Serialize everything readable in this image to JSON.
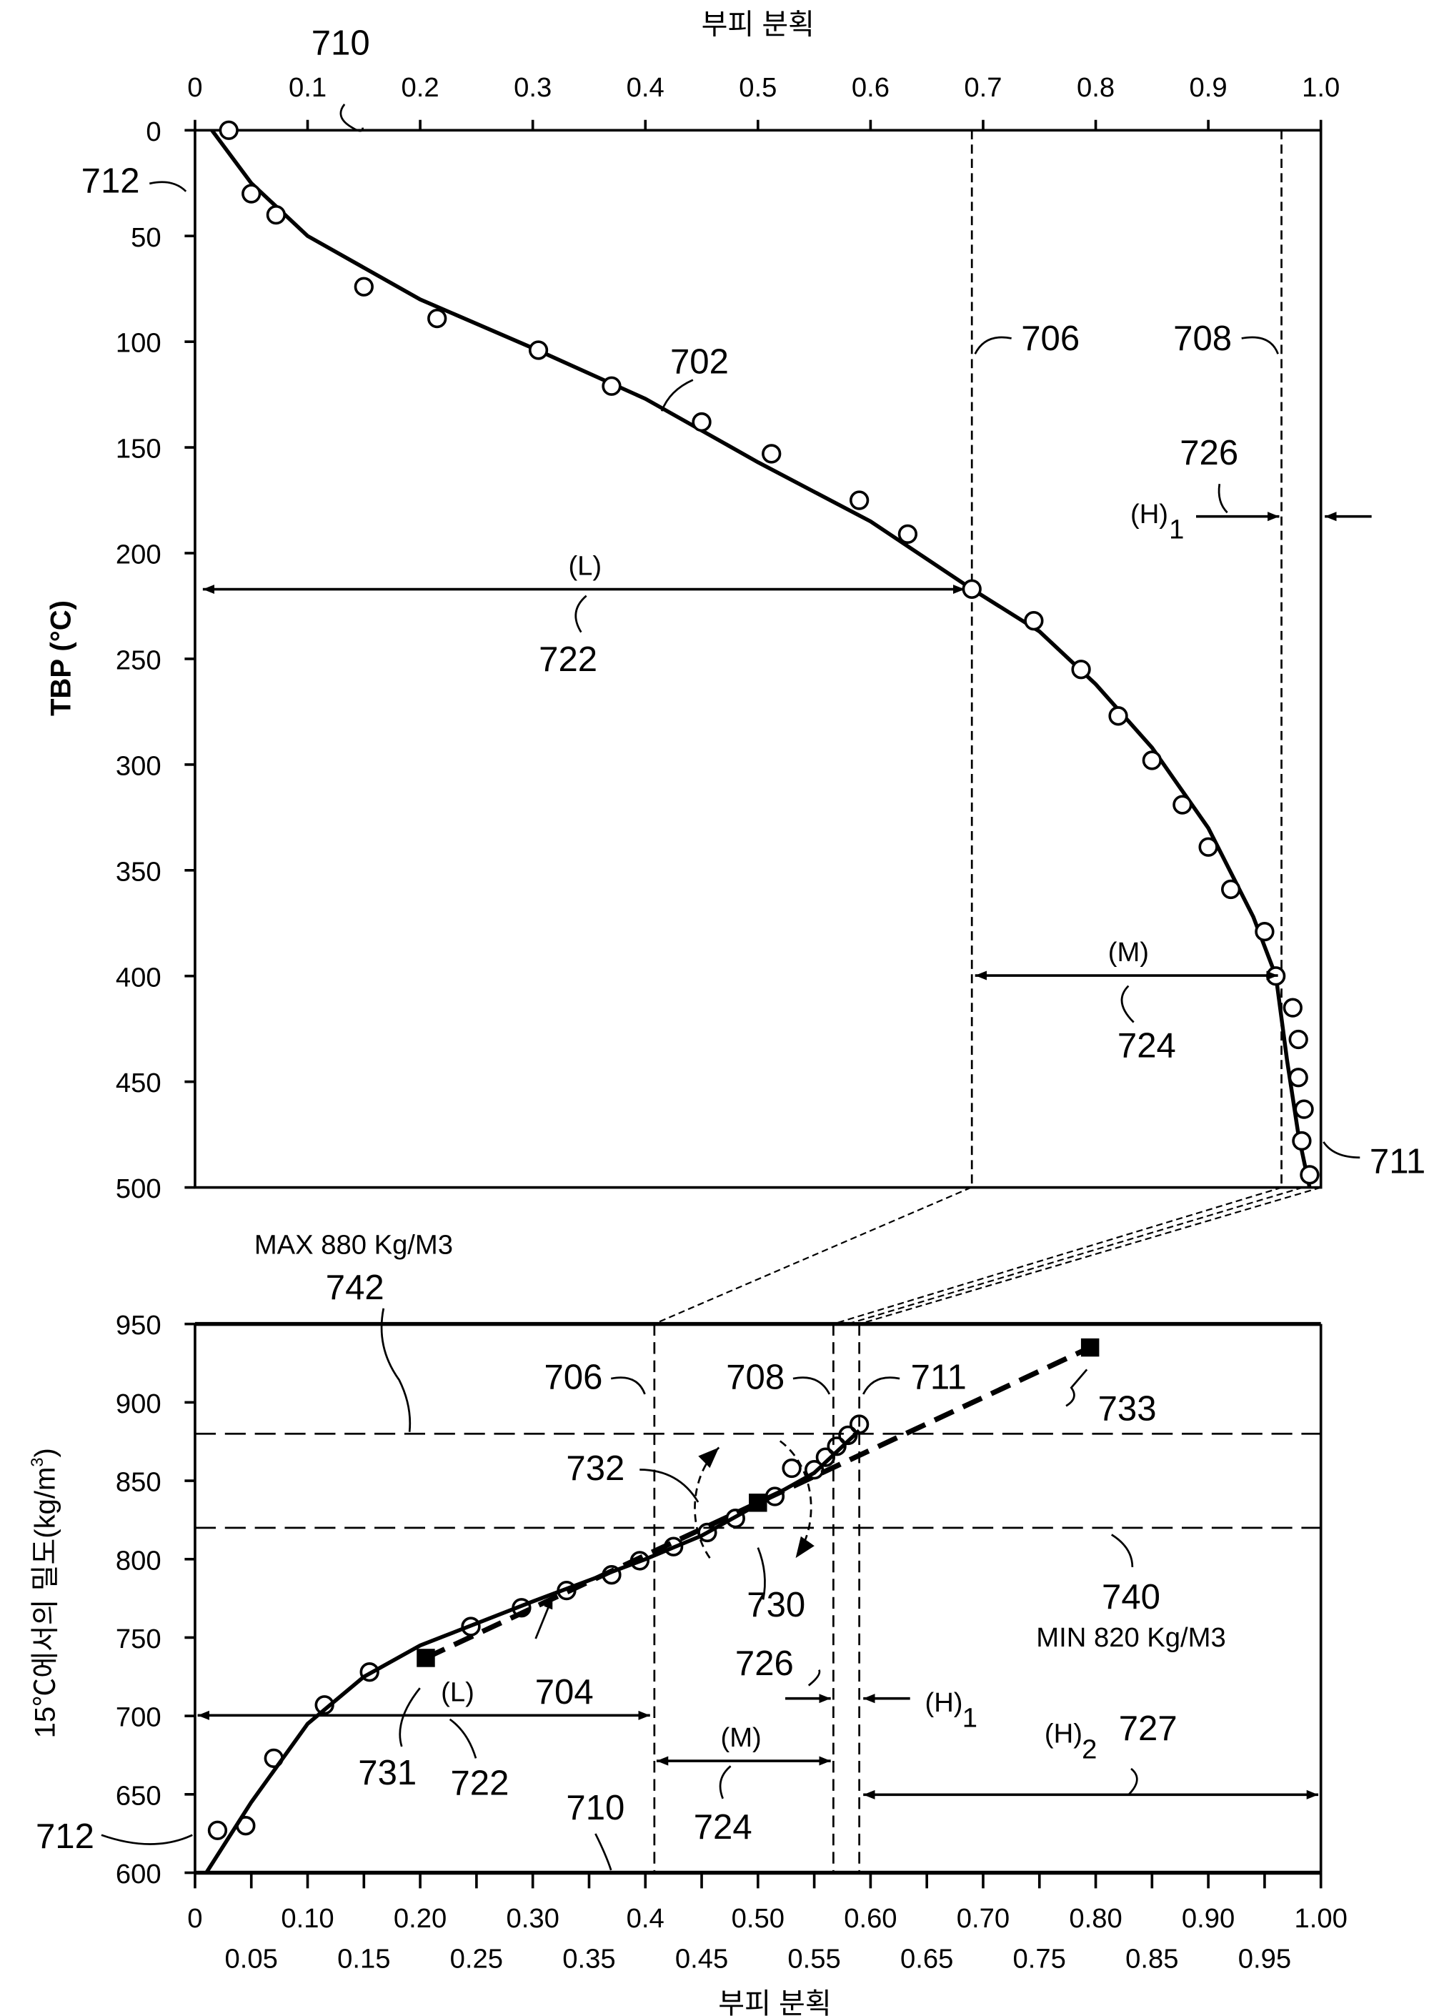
{
  "chart_data": [
    {
      "type": "scatter",
      "xlabel": "부피 분획",
      "ylabel": "TBP (°C)",
      "xlim": [
        0,
        1.0
      ],
      "ylim": [
        500,
        0
      ],
      "x_axis_position": "top",
      "x_ticks": [
        "0",
        "0.1",
        "0.2",
        "0.3",
        "0.4",
        "0.5",
        "0.6",
        "0.7",
        "0.8",
        "0.9",
        "1.0"
      ],
      "y_ticks": [
        "0",
        "50",
        "100",
        "150",
        "200",
        "250",
        "300",
        "350",
        "400",
        "450",
        "500"
      ],
      "grid": false,
      "points": [
        [
          0.03,
          0
        ],
        [
          0.05,
          30
        ],
        [
          0.072,
          40
        ],
        [
          0.15,
          74
        ],
        [
          0.215,
          89
        ],
        [
          0.305,
          104
        ],
        [
          0.37,
          121
        ],
        [
          0.45,
          138
        ],
        [
          0.512,
          153
        ],
        [
          0.59,
          175
        ],
        [
          0.633,
          191
        ],
        [
          0.69,
          217
        ],
        [
          0.745,
          232
        ],
        [
          0.787,
          255
        ],
        [
          0.82,
          277
        ],
        [
          0.85,
          298
        ],
        [
          0.877,
          319
        ],
        [
          0.9,
          339
        ],
        [
          0.92,
          359
        ],
        [
          0.95,
          379
        ],
        [
          0.96,
          400
        ],
        [
          0.975,
          415
        ],
        [
          0.98,
          430
        ],
        [
          0.98,
          448
        ],
        [
          0.985,
          463
        ],
        [
          0.983,
          478
        ],
        [
          0.99,
          494
        ]
      ],
      "curve": [
        [
          0.015,
          0
        ],
        [
          0.05,
          25
        ],
        [
          0.1,
          50
        ],
        [
          0.2,
          80
        ],
        [
          0.3,
          103
        ],
        [
          0.4,
          127
        ],
        [
          0.5,
          157
        ],
        [
          0.6,
          185
        ],
        [
          0.69,
          217
        ],
        [
          0.75,
          237
        ],
        [
          0.8,
          262
        ],
        [
          0.85,
          292
        ],
        [
          0.9,
          330
        ],
        [
          0.94,
          372
        ],
        [
          0.96,
          400
        ],
        [
          0.97,
          440
        ],
        [
          0.98,
          475
        ],
        [
          0.99,
          500
        ]
      ],
      "cut_lines": [
        0.69,
        0.965
      ],
      "annotations": {
        "l710": "710",
        "l712": "712",
        "l702": "702",
        "l706": "706",
        "l708": "708",
        "l726": "726",
        "h1": "(H)",
        "h1_sub": "1",
        "L": "(L)",
        "l722": "722",
        "M": "(M)",
        "l724": "724",
        "l711": "711"
      }
    },
    {
      "type": "scatter",
      "xlabel": "부피 분획",
      "ylabel": "15℃에서의 밀도(kg/m",
      "ylabel_sup": "3",
      "ylabel_end": ")",
      "xlim": [
        0,
        1.0
      ],
      "ylim": [
        600,
        950
      ],
      "x_ticks_row1": [
        "0",
        "0.10",
        "0.20",
        "0.30",
        "0.4",
        "0.50",
        "0.60",
        "0.70",
        "0.80",
        "0.90",
        "1.00"
      ],
      "x_ticks_row2": [
        "0.05",
        "0.15",
        "0.25",
        "0.35",
        "0.45",
        "0.55",
        "0.65",
        "0.75",
        "0.85",
        "0.95"
      ],
      "y_ticks": [
        "950",
        "900",
        "850",
        "800",
        "750",
        "700",
        "650",
        "600"
      ],
      "grid": false,
      "points": [
        [
          0.02,
          627
        ],
        [
          0.045,
          630
        ],
        [
          0.07,
          673
        ],
        [
          0.115,
          707
        ],
        [
          0.155,
          728
        ],
        [
          0.245,
          757
        ],
        [
          0.29,
          769
        ],
        [
          0.33,
          780
        ],
        [
          0.37,
          790
        ],
        [
          0.395,
          799
        ],
        [
          0.425,
          808
        ],
        [
          0.455,
          817
        ],
        [
          0.48,
          826
        ],
        [
          0.515,
          840
        ],
        [
          0.53,
          858
        ],
        [
          0.55,
          857
        ],
        [
          0.56,
          865
        ],
        [
          0.57,
          872
        ],
        [
          0.58,
          879
        ],
        [
          0.59,
          886
        ]
      ],
      "curve": [
        [
          0.01,
          600
        ],
        [
          0.05,
          645
        ],
        [
          0.1,
          695
        ],
        [
          0.15,
          725
        ],
        [
          0.2,
          745
        ],
        [
          0.3,
          773
        ],
        [
          0.4,
          800
        ],
        [
          0.45,
          815
        ],
        [
          0.5,
          835
        ],
        [
          0.55,
          855
        ],
        [
          0.59,
          882
        ]
      ],
      "square_points": [
        [
          0.205,
          737
        ],
        [
          0.5,
          836
        ],
        [
          0.795,
          935
        ]
      ],
      "cut_lines": [
        0.408,
        0.567,
        0.59
      ],
      "limits": [
        880,
        820
      ],
      "annotations": {
        "max": "MAX 880 Kg/M3",
        "l742": "742",
        "l706": "706",
        "l708": "708",
        "l711": "711",
        "l733": "733",
        "l732": "732",
        "l730": "730",
        "l740": "740",
        "min": "MIN 820 Kg/M3",
        "l726": "726",
        "h1": "(H)",
        "h1_sub": "1",
        "L": "(L)",
        "l704": "704",
        "l731": "731",
        "l722": "722",
        "M": "(M)",
        "l724": "724",
        "l710": "710",
        "h2": "(H)",
        "h2_sub": "2",
        "l727": "727",
        "l712": "712"
      }
    }
  ]
}
